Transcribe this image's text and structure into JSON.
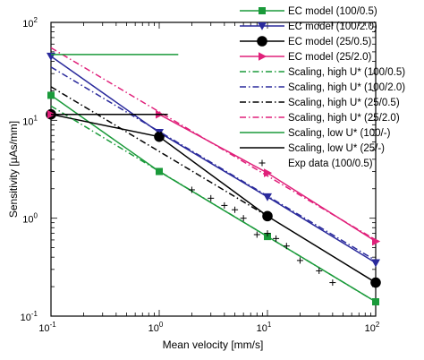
{
  "chart_data": {
    "type": "line",
    "x_scale": "log",
    "y_scale": "log",
    "xlabel": "Mean velocity [mm/s]",
    "ylabel": "Sensitivity [µAs/mm]",
    "xlim": [
      0.1,
      100
    ],
    "ylim": [
      0.1,
      100
    ],
    "x_ticks": [
      {
        "base": "10",
        "exp": "-1"
      },
      {
        "base": "10",
        "exp": "0"
      },
      {
        "base": "10",
        "exp": "1"
      },
      {
        "base": "10",
        "exp": "2"
      }
    ],
    "y_ticks": [
      {
        "base": "10",
        "exp": "-1"
      },
      {
        "base": "10",
        "exp": "0"
      },
      {
        "base": "10",
        "exp": "1"
      },
      {
        "base": "10",
        "exp": "2"
      }
    ],
    "legend_position": "top-right",
    "series": [
      {
        "name": "EC model (100/0.5)",
        "color": "#1a9a3a",
        "style": "solid",
        "marker": "square",
        "x": [
          0.1,
          1,
          10,
          100
        ],
        "y": [
          18,
          3.0,
          0.65,
          0.14
        ]
      },
      {
        "name": "EC model (100/2.0)",
        "color": "#2a2a9c",
        "style": "solid",
        "marker": "triangle-down",
        "x": [
          0.1,
          1,
          10,
          100
        ],
        "y": [
          45,
          7.5,
          1.65,
          0.35
        ]
      },
      {
        "name": "EC model (25/0.5)",
        "color": "#000000",
        "style": "solid",
        "marker": "circle",
        "x": [
          0.1,
          1,
          10,
          100
        ],
        "y": [
          11.5,
          6.8,
          1.05,
          0.22
        ]
      },
      {
        "name": "EC model (25/2.0)",
        "color": "#e0207a",
        "style": "solid",
        "marker": "triangle-right",
        "x": [
          0.1,
          1,
          10,
          100
        ],
        "y": [
          11.5,
          11.5,
          2.9,
          0.58
        ]
      },
      {
        "name": "Scaling, high U* (100/0.5)",
        "color": "#1a9a3a",
        "style": "dashdot",
        "marker": "none",
        "x": [
          0.1,
          100
        ],
        "y": [
          14,
          0.14
        ]
      },
      {
        "name": "Scaling, high U* (100/2.0)",
        "color": "#2a2a9c",
        "style": "dashdot",
        "marker": "none",
        "x": [
          0.1,
          100
        ],
        "y": [
          35,
          0.37
        ]
      },
      {
        "name": "Scaling, high U* (25/0.5)",
        "color": "#000000",
        "style": "dashdot",
        "marker": "none",
        "x": [
          0.1,
          10
        ],
        "y": [
          22,
          1.05
        ]
      },
      {
        "name": "Scaling, high U* (25/2.0)",
        "color": "#e0207a",
        "style": "dashdot",
        "marker": "none",
        "x": [
          0.1,
          100
        ],
        "y": [
          55,
          0.6
        ]
      },
      {
        "name": "Scaling, low U* (100/-)",
        "color": "#1a9a3a",
        "style": "solid",
        "marker": "none",
        "x": [
          0.1,
          1.5
        ],
        "y": [
          47,
          47
        ]
      },
      {
        "name": "Scaling, low U* (25/-)",
        "color": "#000000",
        "style": "solid",
        "marker": "none",
        "x": [
          0.1,
          1.2
        ],
        "y": [
          11.5,
          11.5
        ]
      },
      {
        "name": "Exp data (100/0.5)",
        "color": "#000000",
        "style": "none",
        "marker": "plus",
        "x": [
          2,
          3,
          4,
          5,
          6,
          8,
          10,
          12,
          15,
          20,
          30,
          40
        ],
        "y": [
          1.95,
          1.6,
          1.35,
          1.22,
          1.0,
          0.68,
          0.7,
          0.62,
          0.52,
          0.37,
          0.29,
          0.22
        ]
      }
    ]
  }
}
